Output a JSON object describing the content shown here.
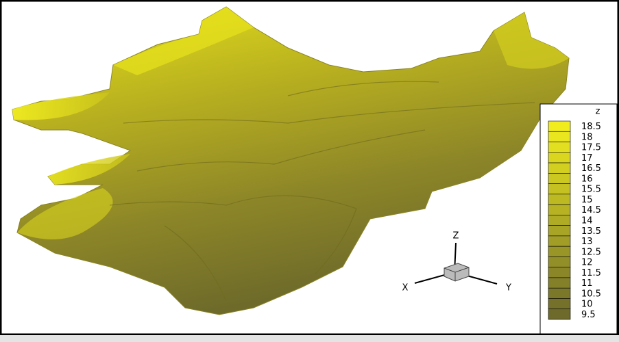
{
  "legend": {
    "title": "z",
    "levels": [
      18.5,
      18,
      17.5,
      17,
      16.5,
      16,
      15.5,
      15,
      14.5,
      14,
      13.5,
      13,
      12.5,
      12,
      11.5,
      11,
      10.5,
      10,
      9.5
    ]
  },
  "axes": {
    "z": "Z",
    "x": "X",
    "y": "Y"
  }
}
